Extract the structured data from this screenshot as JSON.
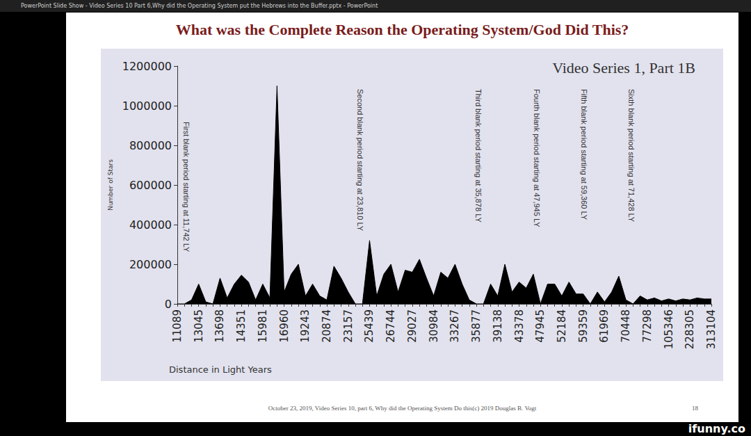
{
  "window_title": "PowerPoint Slide Show  -  Video Series 10 Part 6,Why did the Operating System put the Hebrews into the Buffer.pptx - PowerPoint",
  "footer": "October 23, 2019, Video Series 10, part 6, Why did the Operating System Do this(c) 2019 Douglas B. Vogt",
  "page_number": "18",
  "watermark": "ifunny.co",
  "chart_data": {
    "type": "area",
    "title": "What was the Complete Reason the Operating System/God Did This?",
    "subtitle": "Video Series 1, Part 1B",
    "x_label": "Distance in Light Years",
    "y_label": "Number of Stars",
    "categories": [
      "11089",
      null,
      null,
      "13045",
      null,
      null,
      "13698",
      null,
      null,
      "14351",
      null,
      null,
      "15981",
      null,
      null,
      "16960",
      null,
      null,
      "19243",
      null,
      null,
      "20874",
      null,
      null,
      "23157",
      null,
      null,
      "25439",
      null,
      null,
      "26744",
      null,
      null,
      "29027",
      null,
      null,
      "30984",
      null,
      null,
      "33267",
      null,
      null,
      "35877",
      null,
      null,
      "39138",
      null,
      null,
      "43378",
      null,
      null,
      "47945",
      null,
      null,
      "52184",
      null,
      null,
      "59359",
      null,
      null,
      "61969",
      null,
      null,
      "70448",
      null,
      null,
      "77298",
      null,
      null,
      "105346",
      null,
      null,
      "228305",
      null,
      null,
      "313104"
    ],
    "values": [
      0,
      0,
      20000,
      100000,
      10000,
      0,
      130000,
      30000,
      100000,
      145000,
      110000,
      20000,
      100000,
      30000,
      1100000,
      60000,
      150000,
      200000,
      40000,
      100000,
      40000,
      20000,
      190000,
      130000,
      60000,
      0,
      0,
      320000,
      40000,
      150000,
      200000,
      60000,
      170000,
      160000,
      225000,
      130000,
      40000,
      160000,
      130000,
      200000,
      100000,
      20000,
      0,
      0,
      100000,
      40000,
      200000,
      60000,
      110000,
      80000,
      150000,
      0,
      100000,
      100000,
      40000,
      110000,
      50000,
      50000,
      0,
      60000,
      10000,
      60000,
      140000,
      20000,
      0,
      40000,
      20000,
      30000,
      15000,
      25000,
      15000,
      25000,
      20000,
      30000,
      25000,
      25000
    ],
    "color": "#000000",
    "ylim": [
      0,
      1200000
    ],
    "yticks": [
      0,
      200000,
      400000,
      600000,
      800000,
      1000000,
      1200000
    ],
    "grid": false,
    "annotations": [
      "First blank period starting at 11,742 LY",
      "Second blank period starting at 23,810 LY",
      "Third blank period starting at 35,878 LY",
      "Fourth blank period starting at 47,945 LY",
      "Fifth blank period starting at 59,360 LY",
      "Sixth blank period starting at 71,428 LY"
    ]
  }
}
